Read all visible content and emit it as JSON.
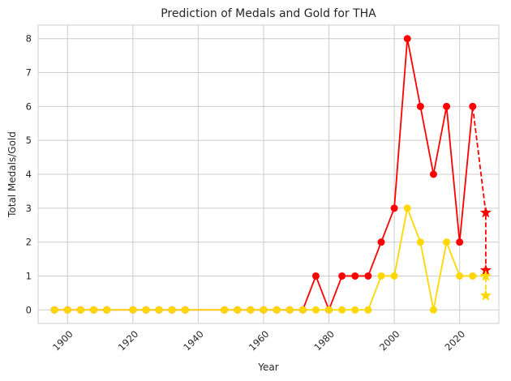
{
  "chart_data": {
    "type": "line",
    "title": "Prediction of Medals and Gold for THA",
    "xlabel": "Year",
    "ylabel": "Total Medals/Gold",
    "xlim": [
      1891,
      2032
    ],
    "ylim": [
      -0.4,
      8.4
    ],
    "x_ticks": [
      1900,
      1920,
      1940,
      1960,
      1980,
      2000,
      2020
    ],
    "y_ticks": [
      0,
      1,
      2,
      3,
      4,
      5,
      6,
      7,
      8
    ],
    "grid": true,
    "series": [
      {
        "color": "#ff0000",
        "marker": "circle",
        "points": [
          [
            1896,
            0
          ],
          [
            1900,
            0
          ],
          [
            1904,
            0
          ],
          [
            1908,
            0
          ],
          [
            1912,
            0
          ],
          [
            1920,
            0
          ],
          [
            1924,
            0
          ],
          [
            1928,
            0
          ],
          [
            1932,
            0
          ],
          [
            1936,
            0
          ],
          [
            1948,
            0
          ],
          [
            1952,
            0
          ],
          [
            1956,
            0
          ],
          [
            1960,
            0
          ],
          [
            1964,
            0
          ],
          [
            1968,
            0
          ],
          [
            1972,
            0
          ],
          [
            1976,
            1
          ],
          [
            1980,
            0
          ],
          [
            1984,
            1
          ],
          [
            1988,
            1
          ],
          [
            1992,
            1
          ],
          [
            1996,
            2
          ],
          [
            2000,
            3
          ],
          [
            2004,
            8
          ],
          [
            2008,
            6
          ],
          [
            2012,
            4
          ],
          [
            2016,
            6
          ],
          [
            2020,
            2
          ],
          [
            2024,
            6
          ]
        ]
      },
      {
        "color": "#ffd700",
        "marker": "circle",
        "points": [
          [
            1896,
            0
          ],
          [
            1900,
            0
          ],
          [
            1904,
            0
          ],
          [
            1908,
            0
          ],
          [
            1912,
            0
          ],
          [
            1920,
            0
          ],
          [
            1924,
            0
          ],
          [
            1928,
            0
          ],
          [
            1932,
            0
          ],
          [
            1936,
            0
          ],
          [
            1948,
            0
          ],
          [
            1952,
            0
          ],
          [
            1956,
            0
          ],
          [
            1960,
            0
          ],
          [
            1964,
            0
          ],
          [
            1968,
            0
          ],
          [
            1972,
            0
          ],
          [
            1976,
            0
          ],
          [
            1980,
            0
          ],
          [
            1984,
            0
          ],
          [
            1988,
            0
          ],
          [
            1992,
            0
          ],
          [
            1996,
            1
          ],
          [
            2000,
            1
          ],
          [
            2004,
            3
          ],
          [
            2008,
            2
          ],
          [
            2012,
            0
          ],
          [
            2016,
            2
          ],
          [
            2020,
            1
          ],
          [
            2024,
            1
          ]
        ]
      }
    ],
    "predictions": [
      {
        "color": "#ff0000",
        "marker": "star",
        "dashed": true,
        "points": [
          [
            2024,
            6
          ],
          [
            2028,
            2.87
          ],
          [
            2028,
            1.17
          ]
        ]
      },
      {
        "color": "#ffd700",
        "marker": "star",
        "dashed": true,
        "points": [
          [
            2024,
            1
          ],
          [
            2028,
            1.0
          ],
          [
            2028,
            0.42
          ]
        ]
      }
    ]
  }
}
